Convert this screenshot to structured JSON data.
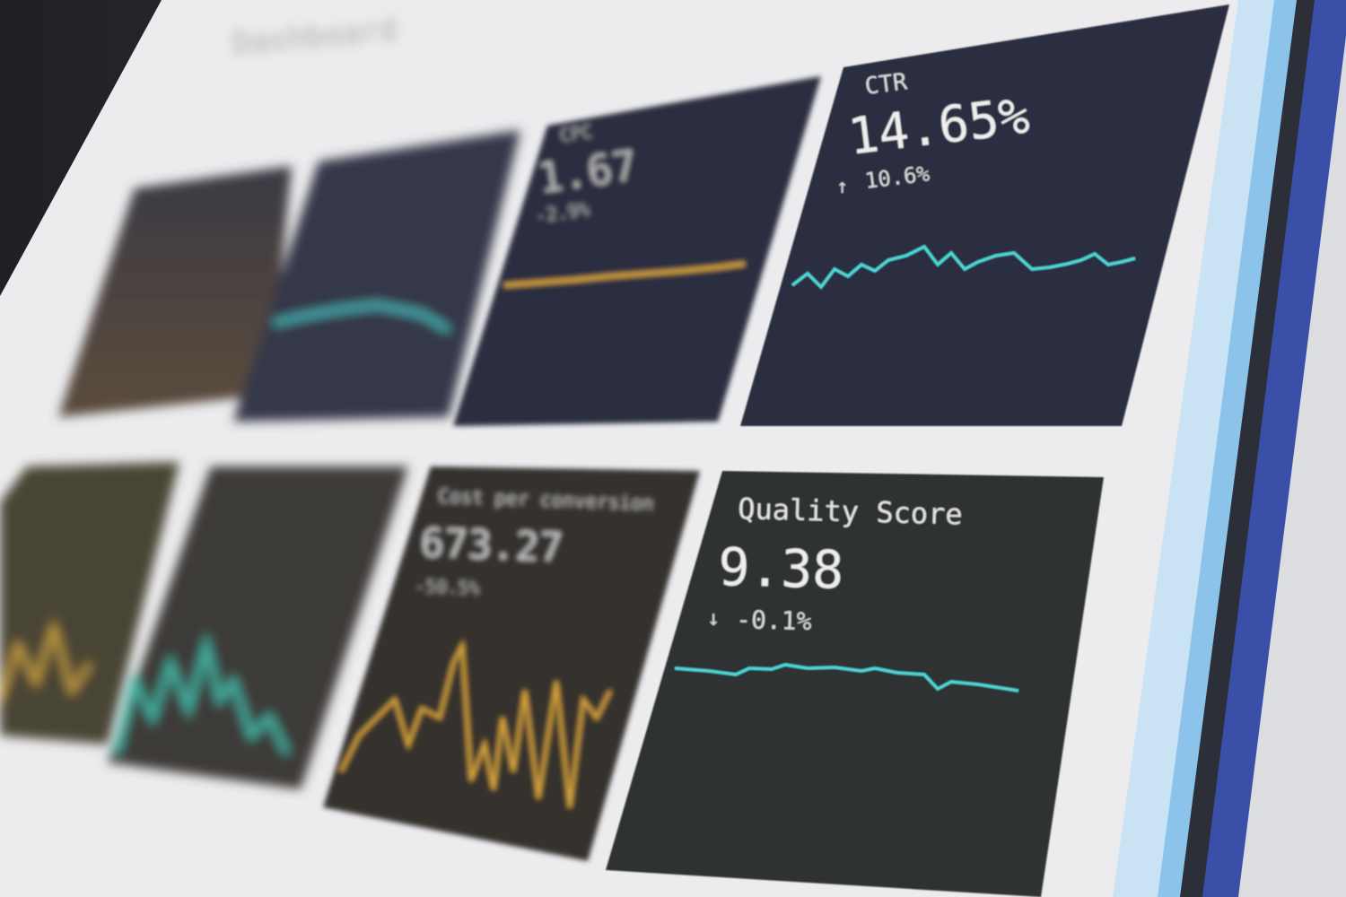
{
  "header": {
    "title": "Dashboard"
  },
  "cards": {
    "cpc": {
      "label": "CPC",
      "value": "1.67",
      "change": "-2.9%"
    },
    "ctr": {
      "label": "CTR",
      "value": "14.65%",
      "change": "10.6%",
      "direction": "up"
    },
    "cost_per_conversion": {
      "label": "Cost per conversion",
      "value": "673.27",
      "change": "-50.5%"
    },
    "quality_score": {
      "label": "Quality Score",
      "value": "9.38",
      "change": "-0.1%",
      "direction": "down"
    }
  },
  "colors": {
    "panel": "#f0f0f2",
    "card_dark": "#2a2d3f",
    "teal": "#4fd6d6",
    "gold": "#d9a63a",
    "edge_blue": "#3a4fa8",
    "edge_light_blue": "#8cc3ea"
  },
  "icons": {
    "up": "arrow-up-icon",
    "down": "arrow-down-icon"
  }
}
